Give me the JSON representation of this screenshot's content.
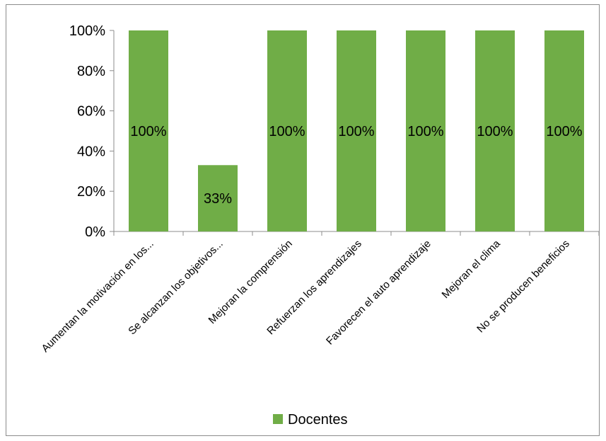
{
  "chart_data": {
    "type": "bar",
    "categories": [
      "Aumentan la motivación en los...",
      "Se alcanzan los objetivos...",
      "Mejoran la comprensión",
      "Refuerzan los aprendizajes",
      "Favorecen el auto aprendizaje",
      "Mejoran el clima",
      "No se producen beneficios"
    ],
    "series": [
      {
        "name": "Docentes",
        "values": [
          100,
          33,
          100,
          100,
          100,
          100,
          100
        ],
        "color": "#70ad47"
      }
    ],
    "data_labels": [
      "100%",
      "33%",
      "100%",
      "100%",
      "100%",
      "100%",
      "100%"
    ],
    "y_ticks": [
      "0%",
      "20%",
      "40%",
      "60%",
      "80%",
      "100%"
    ],
    "ylim": [
      0,
      100
    ],
    "grid": false,
    "legend_position": "bottom"
  }
}
